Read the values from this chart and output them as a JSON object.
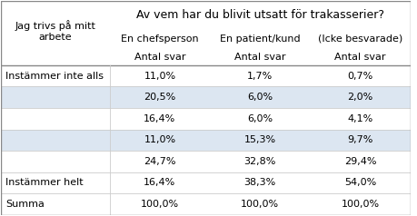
{
  "title_line1": "Av vem har du blivit utsatt för trakasserier?",
  "col_headers": [
    "En chefsperson",
    "En patient/kund",
    "(Icke besvarade)"
  ],
  "col_subheaders": [
    "Antal svar",
    "Antal svar",
    "Antal svar"
  ],
  "row_labels": [
    "Instämmer inte alls",
    "",
    "",
    "",
    "",
    "Instämmer helt",
    "Summa"
  ],
  "left_header_line1": "Jag trivs på mitt",
  "left_header_line2": "arbete",
  "data": [
    [
      "11,0%",
      "1,7%",
      "0,7%"
    ],
    [
      "20,5%",
      "6,0%",
      "2,0%"
    ],
    [
      "16,4%",
      "6,0%",
      "4,1%"
    ],
    [
      "11,0%",
      "15,3%",
      "9,7%"
    ],
    [
      "24,7%",
      "32,8%",
      "29,4%"
    ],
    [
      "16,4%",
      "38,3%",
      "54,0%"
    ],
    [
      "100,0%",
      "100,0%",
      "100,0%"
    ]
  ],
  "bg_color": "#ffffff",
  "row_alt_color": "#dce6f1",
  "row_normal_color": "#ffffff",
  "text_color": "#000000",
  "font_size": 8.0,
  "title_font_size": 9.0,
  "alt_pattern": [
    false,
    true,
    false,
    true,
    false,
    false,
    false
  ]
}
